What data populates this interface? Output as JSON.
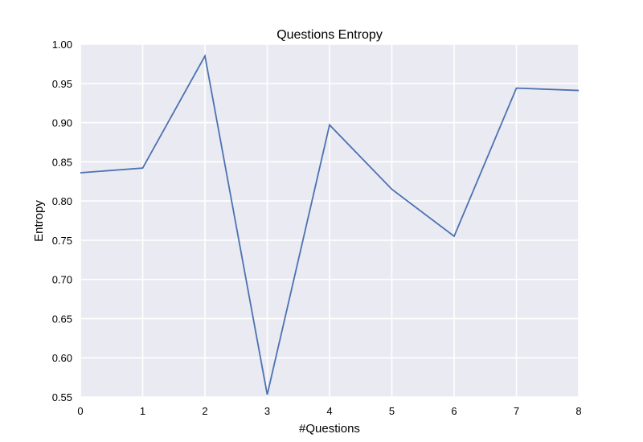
{
  "chart_data": {
    "type": "line",
    "title": "Questions Entropy",
    "xlabel": "#Questions",
    "ylabel": "Entropy",
    "xlim": [
      0,
      8
    ],
    "ylim": [
      0.55,
      1.0
    ],
    "x_ticks": [
      "0",
      "1",
      "2",
      "3",
      "4",
      "5",
      "6",
      "7",
      "8"
    ],
    "y_ticks": [
      "0.55",
      "0.60",
      "0.65",
      "0.70",
      "0.75",
      "0.80",
      "0.85",
      "0.90",
      "0.95",
      "1.00"
    ],
    "grid": true,
    "series": [
      {
        "x": [
          0,
          1,
          2,
          3,
          4,
          5,
          6,
          7,
          8
        ],
        "values": [
          0.836,
          0.842,
          0.985,
          0.553,
          0.897,
          0.815,
          0.755,
          0.944,
          0.941
        ],
        "color": "#4c72b0"
      }
    ],
    "background_color": "#eaeaf2",
    "grid_color": "#ffffff"
  }
}
